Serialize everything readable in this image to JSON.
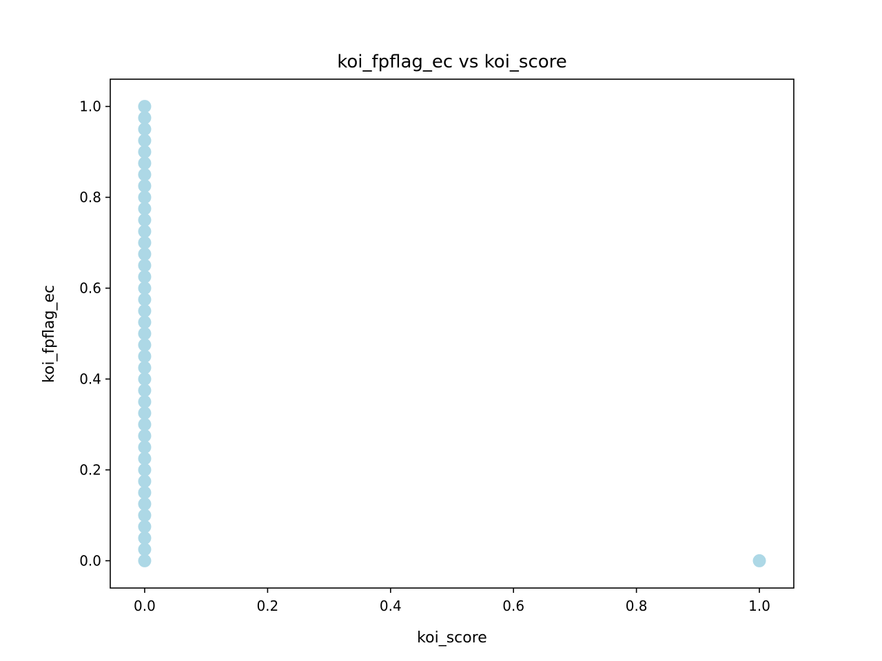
{
  "chart_data": {
    "type": "scatter",
    "title": "koi_fpflag_ec vs koi_score",
    "xlabel": "koi_score",
    "ylabel": "koi_fpflag_ec",
    "xlim": [
      -0.056,
      1.056
    ],
    "ylim": [
      -0.06,
      1.06
    ],
    "xticks": [
      "0.0",
      "0.2",
      "0.4",
      "0.6",
      "0.8",
      "1.0"
    ],
    "yticks": [
      "0.0",
      "0.2",
      "0.4",
      "0.6",
      "0.8",
      "1.0"
    ],
    "grid": false,
    "legend": "none",
    "marker_color": "#ADD8E6",
    "series": [
      {
        "points": [
          [
            0.0,
            0.0
          ],
          [
            0.0,
            0.025
          ],
          [
            0.0,
            0.05
          ],
          [
            0.0,
            0.075
          ],
          [
            0.0,
            0.1
          ],
          [
            0.0,
            0.125
          ],
          [
            0.0,
            0.15
          ],
          [
            0.0,
            0.175
          ],
          [
            0.0,
            0.2
          ],
          [
            0.0,
            0.225
          ],
          [
            0.0,
            0.25
          ],
          [
            0.0,
            0.275
          ],
          [
            0.0,
            0.3
          ],
          [
            0.0,
            0.325
          ],
          [
            0.0,
            0.35
          ],
          [
            0.0,
            0.375
          ],
          [
            0.0,
            0.4
          ],
          [
            0.0,
            0.425
          ],
          [
            0.0,
            0.45
          ],
          [
            0.0,
            0.475
          ],
          [
            0.0,
            0.5
          ],
          [
            0.0,
            0.525
          ],
          [
            0.0,
            0.55
          ],
          [
            0.0,
            0.575
          ],
          [
            0.0,
            0.6
          ],
          [
            0.0,
            0.625
          ],
          [
            0.0,
            0.65
          ],
          [
            0.0,
            0.675
          ],
          [
            0.0,
            0.7
          ],
          [
            0.0,
            0.725
          ],
          [
            0.0,
            0.75
          ],
          [
            0.0,
            0.775
          ],
          [
            0.0,
            0.8
          ],
          [
            0.0,
            0.825
          ],
          [
            0.0,
            0.85
          ],
          [
            0.0,
            0.875
          ],
          [
            0.0,
            0.9
          ],
          [
            0.0,
            0.925
          ],
          [
            0.0,
            0.95
          ],
          [
            0.0,
            0.975
          ],
          [
            0.0,
            1.0
          ],
          [
            1.0,
            0.0
          ]
        ]
      }
    ]
  }
}
